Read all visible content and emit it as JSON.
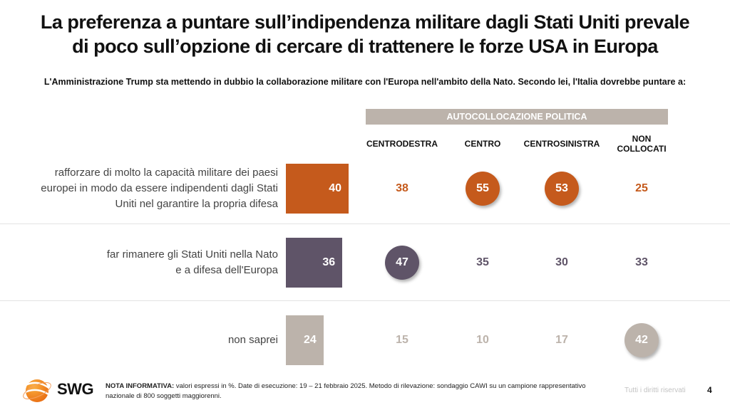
{
  "title_line1": "La preferenza a puntare sull’indipendenza militare dagli Stati Uniti prevale",
  "title_line2": "di poco sull’opzione di cercare di trattenere le forze USA in Europa",
  "question": "L'Amministrazione Trump sta mettendo in dubbio la collaborazione militare con l'Europa nell'ambito della Nato. Secondo lei, l'Italia dovrebbe puntare a:",
  "group_header": "AUTOCOLLOCAZIONE POLITICA",
  "columns": [
    "CENTRODESTRA",
    "CENTRO",
    "CENTROSINISTRA",
    "NON COLLOCATI"
  ],
  "colors": {
    "orange": "#c55a1c",
    "purple": "#5f5468",
    "beige": "#bcb3ab"
  },
  "chart_data": {
    "type": "table",
    "title": "La preferenza a puntare sull’indipendenza militare dagli Stati Uniti prevale di poco sull’opzione di cercare di trattenere le forze USA in Europa",
    "subtitle": "L'Amministrazione Trump sta mettendo in dubbio la collaborazione militare con l'Europa nell'ambito della Nato. Secondo lei, l'Italia dovrebbe puntare a:",
    "unit": "%",
    "categories": [
      "rafforzare di molto la capacità militare dei paesi europei in modo da essere indipendenti dagli Stati Uniti nel garantire la propria difesa",
      "far rimanere gli Stati Uniti nella Nato e a difesa dell'Europa",
      "non saprei"
    ],
    "total": [
      40,
      36,
      24
    ],
    "breakdown_header": "AUTOCOLLOCAZIONE POLITICA",
    "series": [
      {
        "name": "CENTRODESTRA",
        "values": [
          38,
          47,
          15
        ]
      },
      {
        "name": "CENTRO",
        "values": [
          55,
          35,
          10
        ]
      },
      {
        "name": "CENTROSINISTRA",
        "values": [
          53,
          30,
          17
        ]
      },
      {
        "name": "NON COLLOCATI",
        "values": [
          25,
          33,
          42
        ]
      }
    ],
    "highlighted": [
      [
        false,
        true,
        true,
        false
      ],
      [
        true,
        false,
        false,
        false
      ],
      [
        false,
        false,
        false,
        true
      ]
    ]
  },
  "rows": [
    {
      "label_lines": [
        "rafforzare di molto la capacità militare dei paesi",
        "europei in modo da essere indipendenti dagli Stati",
        "Uniti nel garantire la propria difesa"
      ],
      "color": "#c55a1c"
    },
    {
      "label_lines": [
        "far rimanere gli Stati Uniti nella Nato",
        "e a difesa dell'Europa"
      ],
      "color": "#5f5468"
    },
    {
      "label_lines": [
        "non saprei"
      ],
      "color": "#bcb3ab"
    }
  ],
  "footer": {
    "note_label": "NOTA INFORMATIVA:",
    "note_text": " valori espressi in %. Date di esecuzione: 19 – 21 febbraio 2025. Metodo di rilevazione: sondaggio CAWI su un campione rappresentativo nazionale di 800 soggetti maggiorenni.",
    "rights": "Tutti i diritti riservati",
    "page": "4",
    "logo_text": "SWG"
  }
}
